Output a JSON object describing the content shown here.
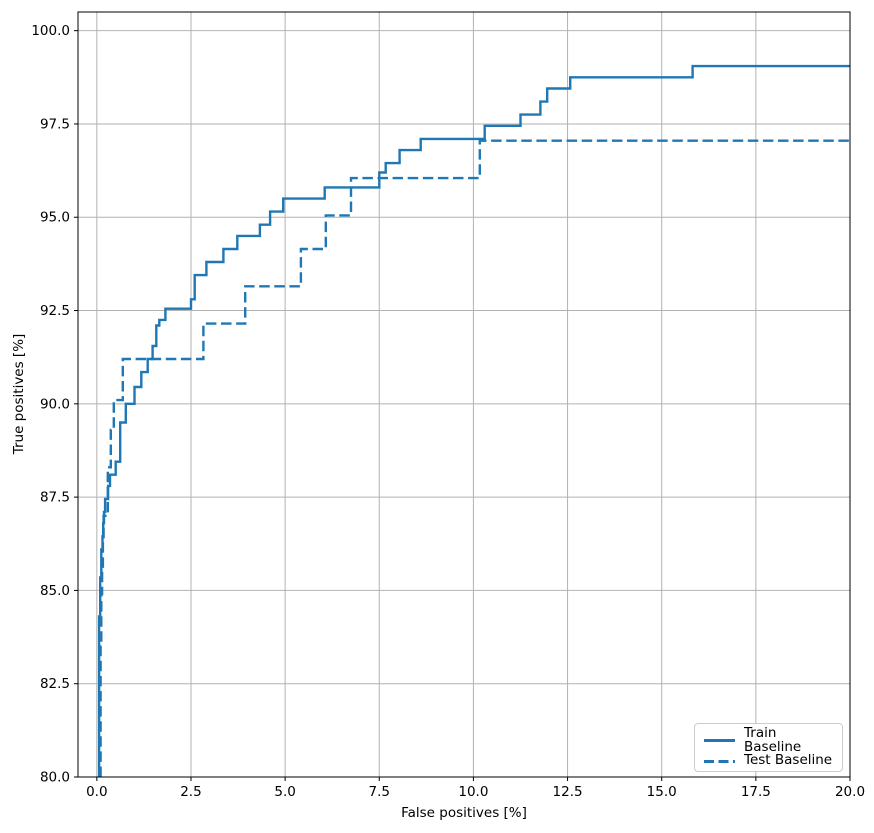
{
  "chart_data": {
    "type": "line",
    "line_style": "step-post",
    "title": "",
    "xlabel": "False positives [%]",
    "ylabel": "True positives [%]",
    "xlim": [
      -0.5,
      20.0
    ],
    "ylim": [
      80.0,
      100.5
    ],
    "xticks": [
      0.0,
      2.5,
      5.0,
      7.5,
      10.0,
      12.5,
      15.0,
      17.5,
      20.0
    ],
    "yticks": [
      80.0,
      82.5,
      85.0,
      87.5,
      90.0,
      92.5,
      95.0,
      97.5,
      100.0
    ],
    "grid": true,
    "grid_color": "#b2b2b2",
    "line_color": "#1f77b4",
    "legend": {
      "position": "lower right",
      "entries": [
        {
          "label": "Train Baseline",
          "style": "solid"
        },
        {
          "label": "Test Baseline",
          "style": "dashed"
        }
      ]
    },
    "series": [
      {
        "name": "Train Baseline",
        "style": "solid",
        "points": [
          [
            0.06,
            80.0
          ],
          [
            0.06,
            84.3
          ],
          [
            0.09,
            84.65
          ],
          [
            0.09,
            85.35
          ],
          [
            0.12,
            85.7
          ],
          [
            0.12,
            86.1
          ],
          [
            0.15,
            86.45
          ],
          [
            0.17,
            86.8
          ],
          [
            0.19,
            87.1
          ],
          [
            0.22,
            87.45
          ],
          [
            0.3,
            87.8
          ],
          [
            0.35,
            88.1
          ],
          [
            0.5,
            88.45
          ],
          [
            0.62,
            89.5
          ],
          [
            0.77,
            90.0
          ],
          [
            1.0,
            90.45
          ],
          [
            1.18,
            90.85
          ],
          [
            1.35,
            91.2
          ],
          [
            1.48,
            91.55
          ],
          [
            1.58,
            92.1
          ],
          [
            1.66,
            92.25
          ],
          [
            1.82,
            92.55
          ],
          [
            2.5,
            92.8
          ],
          [
            2.6,
            93.45
          ],
          [
            2.91,
            93.8
          ],
          [
            3.36,
            94.15
          ],
          [
            3.73,
            94.5
          ],
          [
            4.33,
            94.8
          ],
          [
            4.6,
            95.15
          ],
          [
            4.95,
            95.5
          ],
          [
            6.05,
            95.8
          ],
          [
            7.5,
            96.2
          ],
          [
            7.67,
            96.45
          ],
          [
            8.04,
            96.8
          ],
          [
            8.6,
            97.1
          ],
          [
            10.3,
            97.45
          ],
          [
            11.25,
            97.75
          ],
          [
            11.78,
            98.1
          ],
          [
            11.96,
            98.45
          ],
          [
            12.57,
            98.75
          ],
          [
            15.82,
            99.05
          ],
          [
            20.0,
            99.05
          ]
        ]
      },
      {
        "name": "Test Baseline",
        "style": "dashed",
        "points": [
          [
            0.1,
            80.0
          ],
          [
            0.1,
            83.5
          ],
          [
            0.12,
            84.9
          ],
          [
            0.14,
            85.5
          ],
          [
            0.16,
            86.3
          ],
          [
            0.18,
            87.0
          ],
          [
            0.29,
            87.35
          ],
          [
            0.29,
            88.3
          ],
          [
            0.37,
            89.3
          ],
          [
            0.45,
            90.1
          ],
          [
            0.69,
            91.2
          ],
          [
            2.83,
            92.15
          ],
          [
            3.94,
            93.15
          ],
          [
            5.42,
            94.15
          ],
          [
            6.08,
            95.05
          ],
          [
            6.75,
            96.05
          ],
          [
            10.17,
            97.05
          ],
          [
            20.0,
            97.05
          ]
        ]
      }
    ]
  }
}
